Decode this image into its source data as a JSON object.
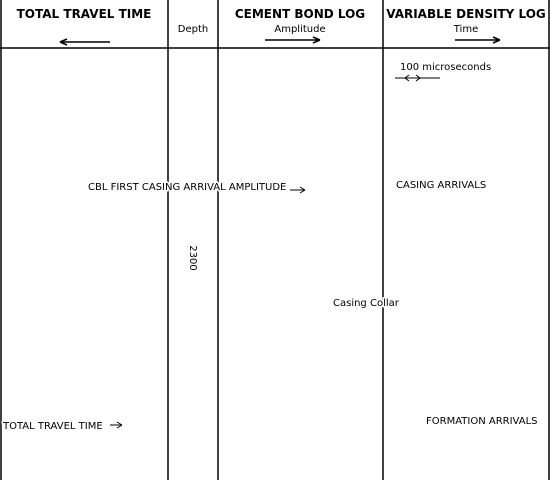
{
  "headers": {
    "track1": "TOTAL TRAVEL TIME",
    "depth": "Depth",
    "track2_title": "CEMENT BOND LOG",
    "track2_sub": "Amplitude",
    "track3_title": "VARIABLE DENSITY LOG",
    "track3_sub": "Time"
  },
  "depth_label": "2300",
  "annotations": {
    "scale": "100 microseconds",
    "cbl": "CBL FIRST CASING ARRIVAL AMPLITUDE",
    "collar": "Casing Collar",
    "casing": "CASING ARRIVALS",
    "formation": "FORMATION ARRIVALS",
    "ttt": "TOTAL TRAVEL TIME"
  }
}
